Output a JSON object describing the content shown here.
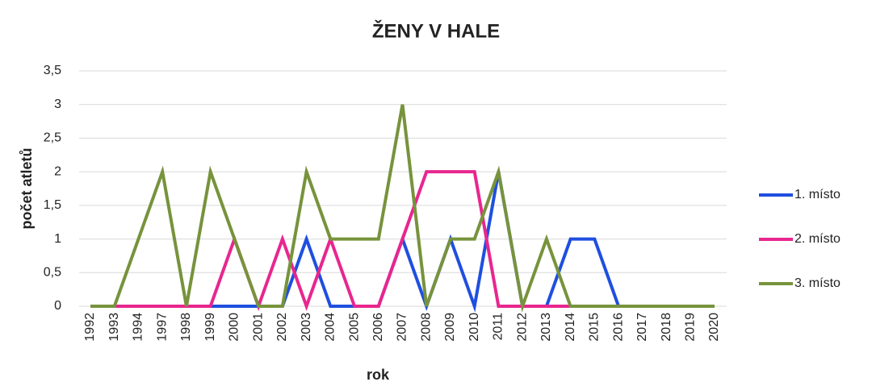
{
  "chart_data": {
    "type": "line",
    "title": "ŽENY V HALE",
    "x_label": "rok",
    "y_label": "počet atletů",
    "categories": [
      "1992",
      "1993",
      "1994",
      "1997",
      "1998",
      "1999",
      "2000",
      "2001",
      "2002",
      "2003",
      "2004",
      "2005",
      "2006",
      "2007",
      "2008",
      "2009",
      "2010",
      "2011",
      "2012",
      "2013",
      "2014",
      "2015",
      "2016",
      "2017",
      "2018",
      "2019",
      "2020"
    ],
    "series": [
      {
        "name": "1. místo",
        "color": "#1f4fe0",
        "values": [
          0,
          0,
          0,
          0,
          0,
          0,
          0,
          0,
          0,
          1,
          0,
          0,
          0,
          1,
          0,
          1,
          0,
          2,
          0,
          0,
          1,
          1,
          0,
          0,
          0,
          0,
          0
        ]
      },
      {
        "name": "2. místo",
        "color": "#e8268f",
        "values": [
          0,
          0,
          0,
          0,
          0,
          0,
          1,
          0,
          1,
          0,
          1,
          0,
          0,
          1,
          2,
          2,
          2,
          0,
          0,
          0,
          0,
          0,
          0,
          0,
          0,
          0,
          0
        ]
      },
      {
        "name": "3. místo",
        "color": "#77933c",
        "values": [
          0,
          0,
          1,
          2,
          0,
          2,
          1,
          0,
          0,
          2,
          1,
          1,
          1,
          3,
          0,
          1,
          1,
          2,
          0,
          1,
          0,
          0,
          0,
          0,
          0,
          0,
          0
        ]
      }
    ],
    "ylim": [
      0,
      3.5
    ],
    "yticks": [
      0,
      {
        "value": 0.5,
        "label": "0,5"
      },
      1,
      {
        "value": 1.5,
        "label": "1,5"
      },
      2,
      {
        "value": 2.5,
        "label": "2,5"
      },
      3,
      {
        "value": 3.5,
        "label": "3,5"
      }
    ],
    "grid": true,
    "legend": "right"
  }
}
